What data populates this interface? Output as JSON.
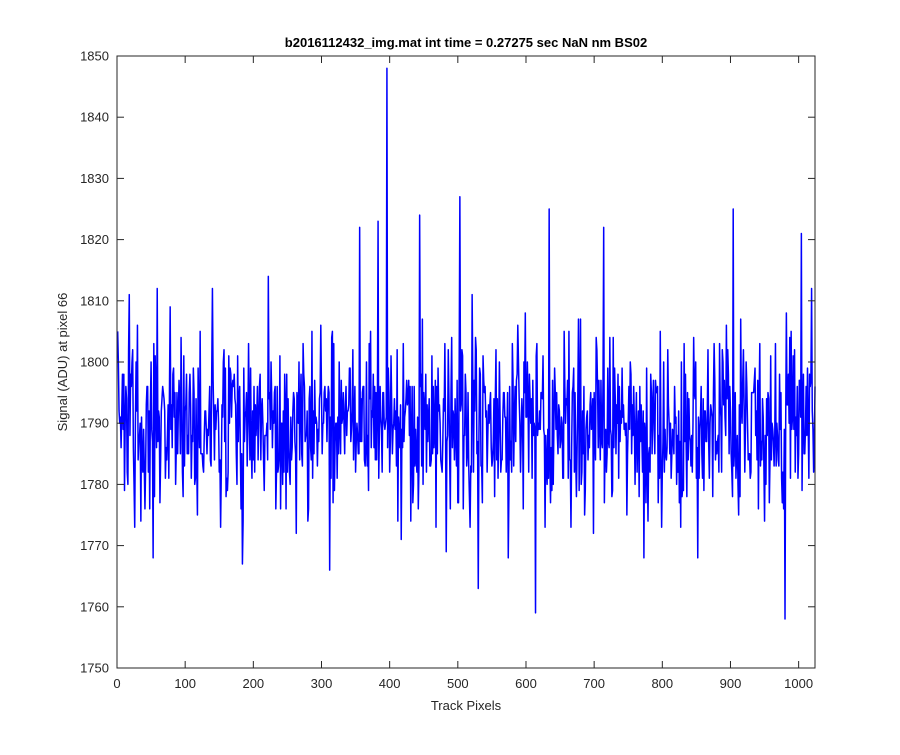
{
  "figure": {
    "background": "#ffffff"
  },
  "chart_data": {
    "type": "line",
    "title": "b2016112432_img.mat int time = 0.27275 sec  NaN nm BS02",
    "xlabel": "Track Pixels",
    "ylabel": "Signal (ADU) at pixel 66",
    "xlim": [
      0,
      1024
    ],
    "ylim": [
      1750,
      1850
    ],
    "xticks": [
      0,
      100,
      200,
      300,
      400,
      500,
      600,
      700,
      800,
      900,
      1000
    ],
    "yticks": [
      1750,
      1760,
      1770,
      1780,
      1790,
      1800,
      1810,
      1820,
      1830,
      1840,
      1850
    ],
    "grid": false,
    "legend": "none",
    "series": [
      {
        "color": "#0000ff",
        "x_start": 1,
        "x_step": 1,
        "length": 1024,
        "mean_level": 1790,
        "noise_std": 7.5,
        "seed": 12432,
        "notable_points": [
          {
            "x": 18,
            "y": 1811
          },
          {
            "x": 53,
            "y": 1768
          },
          {
            "x": 140,
            "y": 1812
          },
          {
            "x": 184,
            "y": 1767
          },
          {
            "x": 222,
            "y": 1814
          },
          {
            "x": 312,
            "y": 1766
          },
          {
            "x": 356,
            "y": 1822
          },
          {
            "x": 383,
            "y": 1823
          },
          {
            "x": 396,
            "y": 1848
          },
          {
            "x": 444,
            "y": 1824
          },
          {
            "x": 503,
            "y": 1827
          },
          {
            "x": 530,
            "y": 1763
          },
          {
            "x": 614,
            "y": 1759
          },
          {
            "x": 634,
            "y": 1825
          },
          {
            "x": 714,
            "y": 1822
          },
          {
            "x": 904,
            "y": 1825
          },
          {
            "x": 980,
            "y": 1758
          },
          {
            "x": 1004,
            "y": 1821
          }
        ]
      }
    ]
  }
}
